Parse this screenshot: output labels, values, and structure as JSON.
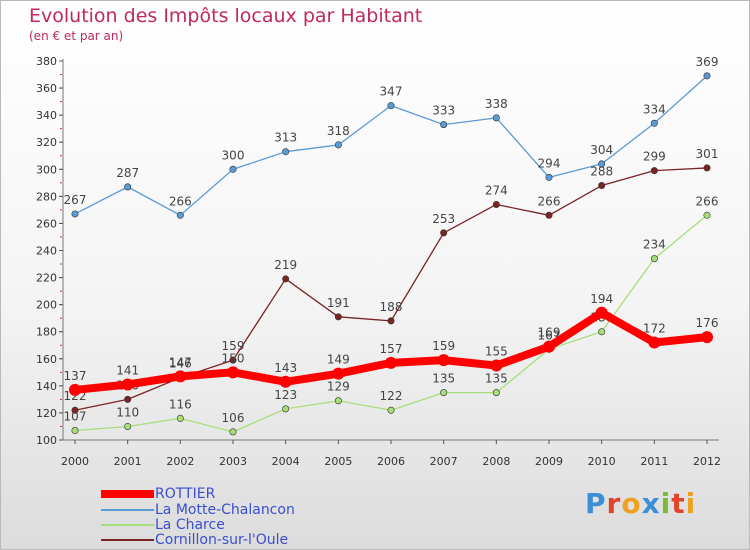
{
  "title": "Evolution des Impôts locaux par Habitant",
  "subtitle": "(en € et par an)",
  "logo": {
    "text": "Proxiti",
    "colors": [
      "#3a8fd6",
      "#e0452c",
      "#f0a020",
      "#3a8fd6",
      "#7bb83a",
      "#e0452c",
      "#f0a020"
    ]
  },
  "chart_data": {
    "type": "line",
    "x": [
      "2000",
      "2001",
      "2002",
      "2003",
      "2004",
      "2005",
      "2006",
      "2007",
      "2008",
      "2009",
      "2010",
      "2011",
      "2012"
    ],
    "ylim": [
      100,
      380
    ],
    "yticks": [
      100,
      120,
      140,
      160,
      180,
      200,
      220,
      240,
      260,
      280,
      300,
      320,
      340,
      360,
      380
    ],
    "grid": false,
    "legend": "bottom-left",
    "series": [
      {
        "name": "ROTTIER",
        "color": "#ff0000",
        "values": [
          137,
          141,
          147,
          150,
          143,
          149,
          157,
          159,
          155,
          169,
          194,
          172,
          176
        ]
      },
      {
        "name": "La Motte-Chalancon",
        "color": "#5b9bd5",
        "values": [
          267,
          287,
          266,
          300,
          313,
          318,
          347,
          333,
          338,
          294,
          304,
          334,
          369
        ]
      },
      {
        "name": "La Charce",
        "color": "#a8de7a",
        "values": [
          107,
          110,
          116,
          106,
          123,
          129,
          122,
          135,
          135,
          167,
          180,
          234,
          266
        ]
      },
      {
        "name": "Cornillon-sur-l'Oule",
        "color": "#7b2424",
        "values": [
          122,
          130,
          146,
          159,
          219,
          191,
          188,
          253,
          274,
          266,
          288,
          299,
          301
        ]
      }
    ]
  }
}
